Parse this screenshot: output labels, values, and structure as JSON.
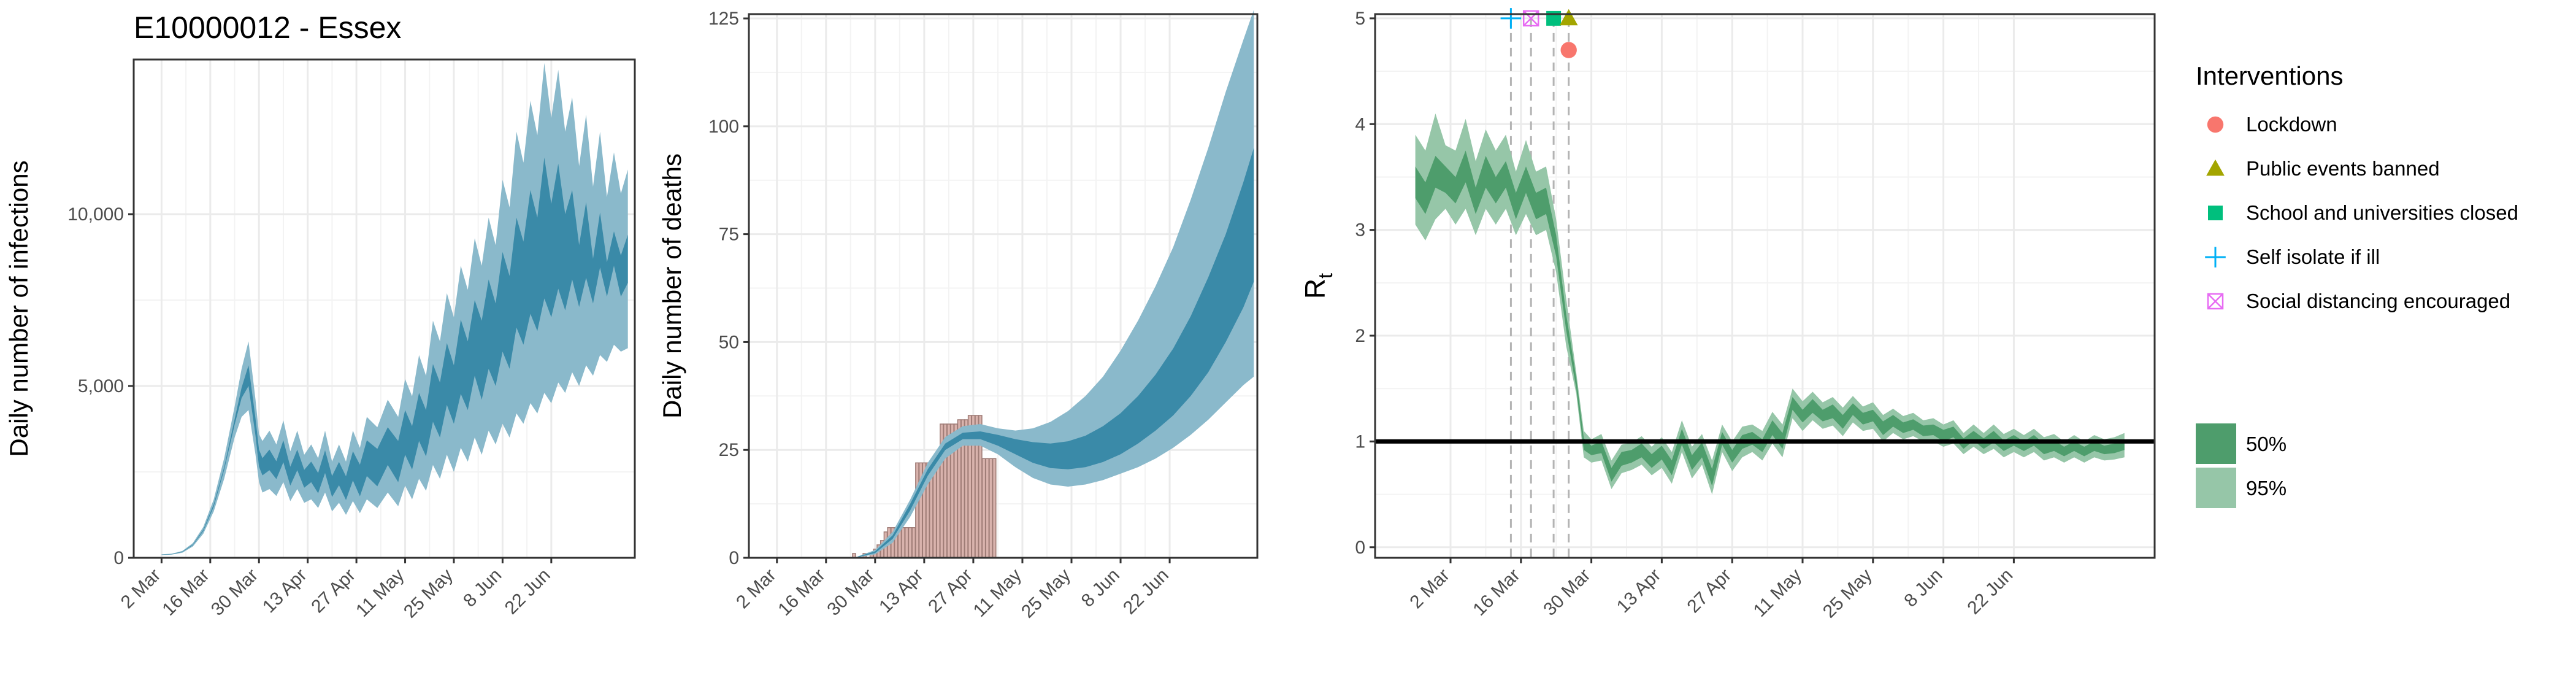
{
  "title": "E10000012 - Essex",
  "x_ticks": [
    "2 Mar",
    "16 Mar",
    "30 Mar",
    "13 Apr",
    "27 Apr",
    "11 May",
    "25 May",
    "8 Jun",
    "22 Jun"
  ],
  "colors": {
    "band_95": "#8ab9cb",
    "band_50": "#3a8aa8",
    "bar_fill": "#d9b3ad",
    "bar_stroke": "#9f7c76",
    "rt_95": "#96c6a8",
    "rt_50": "#4e9d6c",
    "grid": "#ebebeb",
    "vline": "#b3b3b3",
    "lockdown": "#f8766d",
    "public_events_banned": "#a3a500",
    "school_closed": "#00bf7d",
    "self_isolate": "#00b0f6",
    "social_distancing": "#e76bf3"
  },
  "chart_data": [
    {
      "type": "area",
      "ylabel": "Daily number of infections",
      "ylim": [
        0,
        14500
      ],
      "y_ticks": [
        "0",
        "5,000",
        "10,000"
      ],
      "y_tick_values": [
        0,
        5000,
        10000
      ],
      "bands_x_days": [
        0,
        3,
        6,
        9,
        12,
        15,
        18,
        21,
        23,
        25,
        27,
        28,
        29,
        31,
        33,
        35,
        37,
        39,
        41,
        43,
        45,
        47,
        49,
        51,
        53,
        55,
        57,
        59,
        62,
        65,
        68,
        70,
        72,
        74,
        76,
        78,
        80,
        82,
        84,
        86,
        88,
        90,
        92,
        94,
        96,
        98,
        100,
        102,
        104,
        106,
        108,
        110,
        112,
        114,
        116,
        118,
        120,
        122,
        124,
        126,
        128,
        130,
        132,
        134
      ],
      "band_95": {
        "lower": [
          80,
          95,
          150,
          330,
          700,
          1350,
          2300,
          3500,
          4100,
          4300,
          3000,
          2200,
          1900,
          2000,
          1800,
          2200,
          1650,
          2000,
          1600,
          1700,
          1450,
          1900,
          1350,
          1600,
          1250,
          1650,
          1300,
          1700,
          1450,
          1900,
          1500,
          2100,
          1700,
          2300,
          1950,
          2700,
          2300,
          3000,
          2500,
          3200,
          2800,
          3500,
          3000,
          3700,
          3300,
          3900,
          3500,
          4200,
          3900,
          4500,
          4200,
          4800,
          4500,
          5100,
          4800,
          5400,
          5000,
          5600,
          5300,
          5900,
          5700,
          6200,
          6000,
          6100
        ],
        "upper": [
          100,
          120,
          200,
          430,
          900,
          1700,
          2900,
          4400,
          5500,
          6300,
          4600,
          3600,
          3400,
          3700,
          3300,
          4000,
          3100,
          3700,
          3000,
          3300,
          2900,
          3700,
          2800,
          3300,
          2800,
          3700,
          3200,
          4100,
          3800,
          4600,
          4100,
          5200,
          4700,
          5900,
          5300,
          6900,
          6300,
          7700,
          7000,
          8500,
          7800,
          9300,
          8500,
          9900,
          9100,
          11000,
          10200,
          12400,
          11500,
          13300,
          12300,
          14400,
          12800,
          14200,
          12400,
          13400,
          11400,
          12900,
          10800,
          12400,
          10500,
          11800,
          10600,
          11300
        ]
      },
      "band_50": {
        "lower": [
          87,
          103,
          170,
          370,
          780,
          1490,
          2560,
          3870,
          4650,
          5000,
          3550,
          2650,
          2400,
          2550,
          2290,
          2780,
          2100,
          2550,
          2040,
          2200,
          1880,
          2470,
          1770,
          2110,
          1680,
          2250,
          1790,
          2380,
          2080,
          2700,
          2200,
          3000,
          2570,
          3400,
          2950,
          3960,
          3500,
          4450,
          3900,
          4770,
          4300,
          5300,
          4600,
          5500,
          5000,
          6000,
          5500,
          6700,
          6200,
          7100,
          6600,
          7550,
          7000,
          7830,
          7200,
          8100,
          7300,
          8150,
          7400,
          8450,
          7600,
          8500,
          7600,
          8000
        ],
        "upper": [
          93,
          112,
          180,
          390,
          820,
          1560,
          2640,
          4030,
          4950,
          5600,
          4050,
          3150,
          2900,
          3150,
          2810,
          3420,
          2650,
          3150,
          2560,
          2800,
          2470,
          3130,
          2380,
          2790,
          2370,
          3100,
          2710,
          3420,
          3170,
          3800,
          3400,
          4300,
          3830,
          4800,
          4300,
          5640,
          5100,
          6250,
          5600,
          6930,
          6300,
          7500,
          6900,
          8100,
          7400,
          8900,
          8200,
          9900,
          9200,
          10700,
          9900,
          11650,
          10300,
          11470,
          10000,
          10700,
          9100,
          10350,
          8700,
          10050,
          8600,
          9500,
          8800,
          9400
        ]
      }
    },
    {
      "type": "bar",
      "ylabel": "Daily number of deaths",
      "ylim": [
        0,
        126
      ],
      "y_ticks": [
        "0",
        "25",
        "50",
        "75",
        "100",
        "125"
      ],
      "y_tick_values": [
        0,
        25,
        50,
        75,
        100,
        125
      ],
      "bars_x_days": [
        22,
        23,
        24,
        25,
        26,
        27,
        28,
        29,
        30,
        31,
        32,
        33,
        34,
        35,
        36,
        37,
        38,
        39,
        40,
        41,
        42,
        43,
        44,
        45,
        46,
        47,
        48,
        49,
        50,
        51,
        52,
        53,
        54,
        55,
        56,
        57,
        58,
        59,
        60,
        61,
        62
      ],
      "bars": [
        1,
        0,
        0,
        1,
        0,
        1,
        2,
        3,
        4,
        6,
        7,
        7,
        7,
        7,
        7,
        7,
        7,
        7,
        22,
        22,
        22,
        22,
        22,
        22,
        22,
        31,
        31,
        31,
        31,
        31,
        32,
        32,
        32,
        33,
        33,
        33,
        33,
        23,
        23,
        23,
        23
      ],
      "bands_x_days": [
        23,
        28,
        33,
        38,
        43,
        48,
        53,
        58,
        63,
        68,
        73,
        78,
        83,
        88,
        93,
        98,
        103,
        108,
        113,
        118,
        123,
        128,
        133,
        136
      ],
      "band_95": {
        "lower": [
          0.1,
          0.8,
          3.5,
          9.5,
          17.0,
          23.0,
          26.0,
          26.0,
          24.0,
          21.0,
          18.5,
          17.0,
          16.5,
          17.0,
          18.0,
          19.5,
          21.0,
          23.0,
          25.5,
          28.5,
          32.0,
          36.0,
          40.0,
          42.0
        ],
        "upper": [
          0.3,
          1.8,
          6.0,
          13.5,
          22.0,
          28.0,
          30.5,
          31.0,
          30.0,
          29.5,
          30.0,
          31.5,
          34.0,
          37.5,
          42.0,
          48.0,
          55.0,
          63.0,
          72.0,
          83.0,
          95.0,
          108.0,
          120.0,
          127.0
        ]
      },
      "band_50": {
        "lower": [
          0.15,
          1.1,
          4.4,
          11.0,
          19.0,
          25.0,
          27.5,
          27.5,
          26.0,
          24.0,
          22.0,
          20.8,
          20.5,
          21.0,
          22.2,
          24.0,
          26.5,
          29.5,
          33.0,
          37.5,
          43.0,
          50.0,
          58.0,
          64.0
        ],
        "upper": [
          0.25,
          1.5,
          5.2,
          12.5,
          20.5,
          26.5,
          29.0,
          29.3,
          28.5,
          27.5,
          26.8,
          26.5,
          27.0,
          28.3,
          30.5,
          33.5,
          37.5,
          42.5,
          48.5,
          56.0,
          65.0,
          75.0,
          87.0,
          95.0
        ]
      }
    },
    {
      "type": "line",
      "ylabel": "R",
      "ylabel_subscript": "t",
      "ylim": [
        -0.1,
        5.04
      ],
      "y_ticks": [
        "0",
        "1",
        "2",
        "3",
        "4",
        "5"
      ],
      "y_tick_values": [
        0,
        1,
        2,
        3,
        4,
        5
      ],
      "reference_line": 1,
      "rt_x_days": [
        -7,
        -5,
        -3,
        -1,
        1,
        3,
        5,
        7,
        9,
        11,
        13,
        15,
        17,
        19,
        21,
        23,
        25,
        26.5,
        28,
        30,
        32,
        34,
        36,
        38,
        40,
        42,
        44,
        46,
        48,
        50,
        52,
        54,
        56,
        58,
        60,
        62,
        64,
        66,
        68,
        70,
        72,
        74,
        76,
        78,
        80,
        82,
        84,
        86,
        88,
        90,
        92,
        94,
        96,
        98,
        100,
        102,
        104,
        106,
        108,
        110,
        112,
        114,
        116,
        118,
        120,
        122,
        124,
        126,
        128,
        130,
        132,
        134
      ],
      "rt_95": {
        "lower": [
          3.05,
          2.9,
          3.1,
          3.2,
          3.05,
          3.2,
          2.95,
          3.2,
          3.05,
          3.2,
          2.95,
          3.15,
          2.95,
          3.0,
          2.6,
          1.9,
          1.45,
          0.85,
          0.8,
          0.82,
          0.55,
          0.7,
          0.73,
          0.78,
          0.68,
          0.75,
          0.6,
          0.9,
          0.65,
          0.78,
          0.5,
          0.9,
          0.72,
          0.85,
          0.9,
          0.82,
          0.98,
          0.85,
          1.22,
          1.1,
          1.2,
          1.12,
          1.15,
          1.05,
          1.18,
          1.1,
          1.12,
          1.0,
          1.08,
          1.02,
          1.05,
          1.0,
          1.0,
          0.95,
          0.98,
          0.88,
          0.95,
          0.88,
          0.93,
          0.85,
          0.9,
          0.85,
          0.9,
          0.82,
          0.85,
          0.8,
          0.85,
          0.8,
          0.85,
          0.82,
          0.83,
          0.85
        ],
        "upper": [
          3.9,
          3.75,
          4.1,
          3.8,
          3.75,
          4.05,
          3.65,
          3.95,
          3.75,
          3.9,
          3.55,
          3.85,
          3.55,
          3.6,
          3.1,
          2.35,
          1.65,
          1.1,
          1.02,
          1.07,
          0.82,
          0.97,
          0.99,
          1.05,
          0.95,
          1.04,
          0.9,
          1.2,
          0.95,
          1.07,
          0.82,
          1.16,
          1.0,
          1.14,
          1.16,
          1.1,
          1.28,
          1.16,
          1.5,
          1.38,
          1.47,
          1.37,
          1.42,
          1.32,
          1.43,
          1.33,
          1.37,
          1.25,
          1.31,
          1.24,
          1.27,
          1.2,
          1.22,
          1.16,
          1.2,
          1.08,
          1.16,
          1.08,
          1.16,
          1.07,
          1.12,
          1.06,
          1.12,
          1.04,
          1.07,
          1.0,
          1.06,
          1.0,
          1.06,
          1.02,
          1.04,
          1.08
        ]
      },
      "rt_50": {
        "lower": [
          3.3,
          3.15,
          3.4,
          3.35,
          3.25,
          3.45,
          3.15,
          3.4,
          3.25,
          3.4,
          3.1,
          3.35,
          3.1,
          3.15,
          2.75,
          2.05,
          1.5,
          0.92,
          0.87,
          0.89,
          0.62,
          0.77,
          0.8,
          0.85,
          0.75,
          0.83,
          0.68,
          0.97,
          0.73,
          0.85,
          0.58,
          0.97,
          0.8,
          0.93,
          0.97,
          0.9,
          1.06,
          0.93,
          1.3,
          1.18,
          1.27,
          1.19,
          1.22,
          1.12,
          1.25,
          1.16,
          1.19,
          1.06,
          1.14,
          1.08,
          1.11,
          1.05,
          1.06,
          1.0,
          1.04,
          0.93,
          1.01,
          0.93,
          0.99,
          0.91,
          0.96,
          0.91,
          0.96,
          0.88,
          0.91,
          0.86,
          0.91,
          0.86,
          0.91,
          0.88,
          0.89,
          0.92
        ],
        "upper": [
          3.6,
          3.45,
          3.7,
          3.6,
          3.5,
          3.75,
          3.4,
          3.7,
          3.5,
          3.65,
          3.35,
          3.6,
          3.35,
          3.4,
          2.95,
          2.2,
          1.6,
          1.03,
          0.96,
          1.0,
          0.75,
          0.9,
          0.92,
          0.98,
          0.88,
          0.96,
          0.82,
          1.12,
          0.87,
          0.99,
          0.74,
          1.09,
          0.92,
          1.06,
          1.09,
          1.02,
          1.2,
          1.08,
          1.42,
          1.3,
          1.4,
          1.3,
          1.35,
          1.25,
          1.36,
          1.27,
          1.3,
          1.19,
          1.25,
          1.18,
          1.21,
          1.15,
          1.16,
          1.11,
          1.14,
          1.03,
          1.1,
          1.03,
          1.1,
          1.01,
          1.06,
          1.0,
          1.06,
          0.98,
          1.01,
          0.95,
          1.0,
          0.95,
          1.0,
          0.96,
          0.98,
          1.01
        ]
      },
      "interventions": [
        {
          "name": "Self isolate if ill",
          "day": 12,
          "y": 5.0,
          "shape": "plus",
          "color_key": "self_isolate"
        },
        {
          "name": "Social distancing encouraged",
          "day": 16,
          "y": 5.0,
          "shape": "boxx",
          "color_key": "social_distancing"
        },
        {
          "name": "School and universities closed",
          "day": 20.5,
          "y": 5.0,
          "shape": "square",
          "color_key": "school_closed"
        },
        {
          "name": "Public events banned",
          "day": 23.5,
          "y": 5.0,
          "shape": "triangle",
          "color_key": "public_events_banned"
        },
        {
          "name": "Lockdown",
          "day": 23.5,
          "y": 4.7,
          "shape": "circle",
          "color_key": "lockdown"
        }
      ]
    }
  ],
  "legend": {
    "title": "Interventions",
    "items": [
      {
        "label": "Lockdown",
        "shape": "circle",
        "color_key": "lockdown"
      },
      {
        "label": "Public events banned",
        "shape": "triangle",
        "color_key": "public_events_banned"
      },
      {
        "label": "School and universities closed",
        "shape": "square",
        "color_key": "school_closed"
      },
      {
        "label": "Self isolate if ill",
        "shape": "plus",
        "color_key": "self_isolate"
      },
      {
        "label": "Social distancing encouraged",
        "shape": "boxx",
        "color_key": "social_distancing"
      }
    ],
    "ci_items": [
      {
        "label": "50%",
        "color_key": "rt_50"
      },
      {
        "label": "95%",
        "color_key": "rt_95"
      }
    ]
  }
}
